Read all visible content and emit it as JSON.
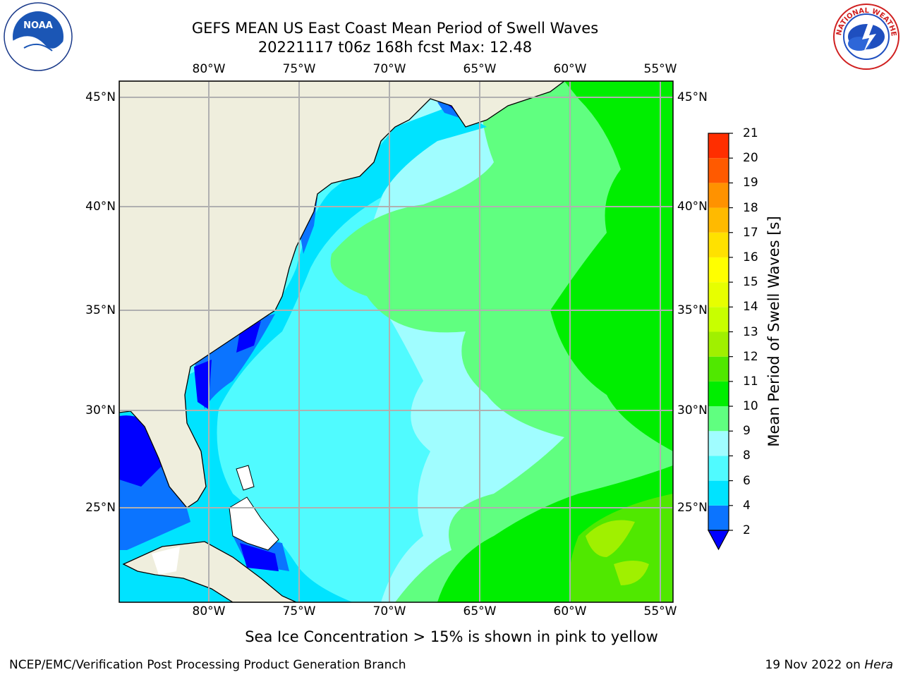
{
  "title": {
    "line1": "GEFS MEAN US East Coast Mean Period of Swell Waves",
    "line2": "20221117 t06z 168h fcst   Max: 12.48"
  },
  "logos": {
    "left": "noaa-logo",
    "left_text": "NOAA",
    "left_ring_text": "NATIONAL OCEANIC AND ATMOSPHERIC ADMINISTRATION · U.S. DEPARTMENT OF COMMERCE",
    "right": "nws-logo",
    "right_ring_text": "NATIONAL WEATHER SERVICE"
  },
  "map": {
    "lon_labels": [
      "80°W",
      "75°W",
      "70°W",
      "65°W",
      "60°W",
      "55°W"
    ],
    "lat_labels": [
      "45°N",
      "40°N",
      "35°N",
      "30°N",
      "25°N"
    ],
    "lon_values": [
      -80,
      -75,
      -70,
      -65,
      -60,
      -55
    ],
    "lat_values": [
      45,
      40,
      35,
      30,
      25
    ],
    "extent": {
      "lon": [
        -85,
        -54.3
      ],
      "lat": [
        20.5,
        46
      ]
    },
    "land_color": "#efeedd",
    "grid_color": "#b0b0b0"
  },
  "colorbar": {
    "title": "Mean Period of Swell Waves [s]",
    "levels": [
      "2",
      "4",
      "6",
      "8",
      "9",
      "10",
      "11",
      "12",
      "13",
      "14",
      "15",
      "16",
      "17",
      "18",
      "19",
      "20",
      "21"
    ],
    "colors": [
      "#0b74ff",
      "#00e3ff",
      "#50fbff",
      "#a0fdff",
      "#60ff80",
      "#00ee00",
      "#50e800",
      "#a0f000",
      "#c8ff00",
      "#e7ff00",
      "#ffff00",
      "#ffe100",
      "#ffba00",
      "#ff9200",
      "#ff5a00",
      "#ff2e00"
    ],
    "extend_color": "#0000ff"
  },
  "notes": {
    "ice": "Sea Ice Concentration > 15% is shown in pink to yellow",
    "footer_left": "NCEP/EMC/Verification Post Processing Product Generation Branch",
    "footer_date": "19 Nov 2022 on ",
    "footer_host": "Hera"
  }
}
